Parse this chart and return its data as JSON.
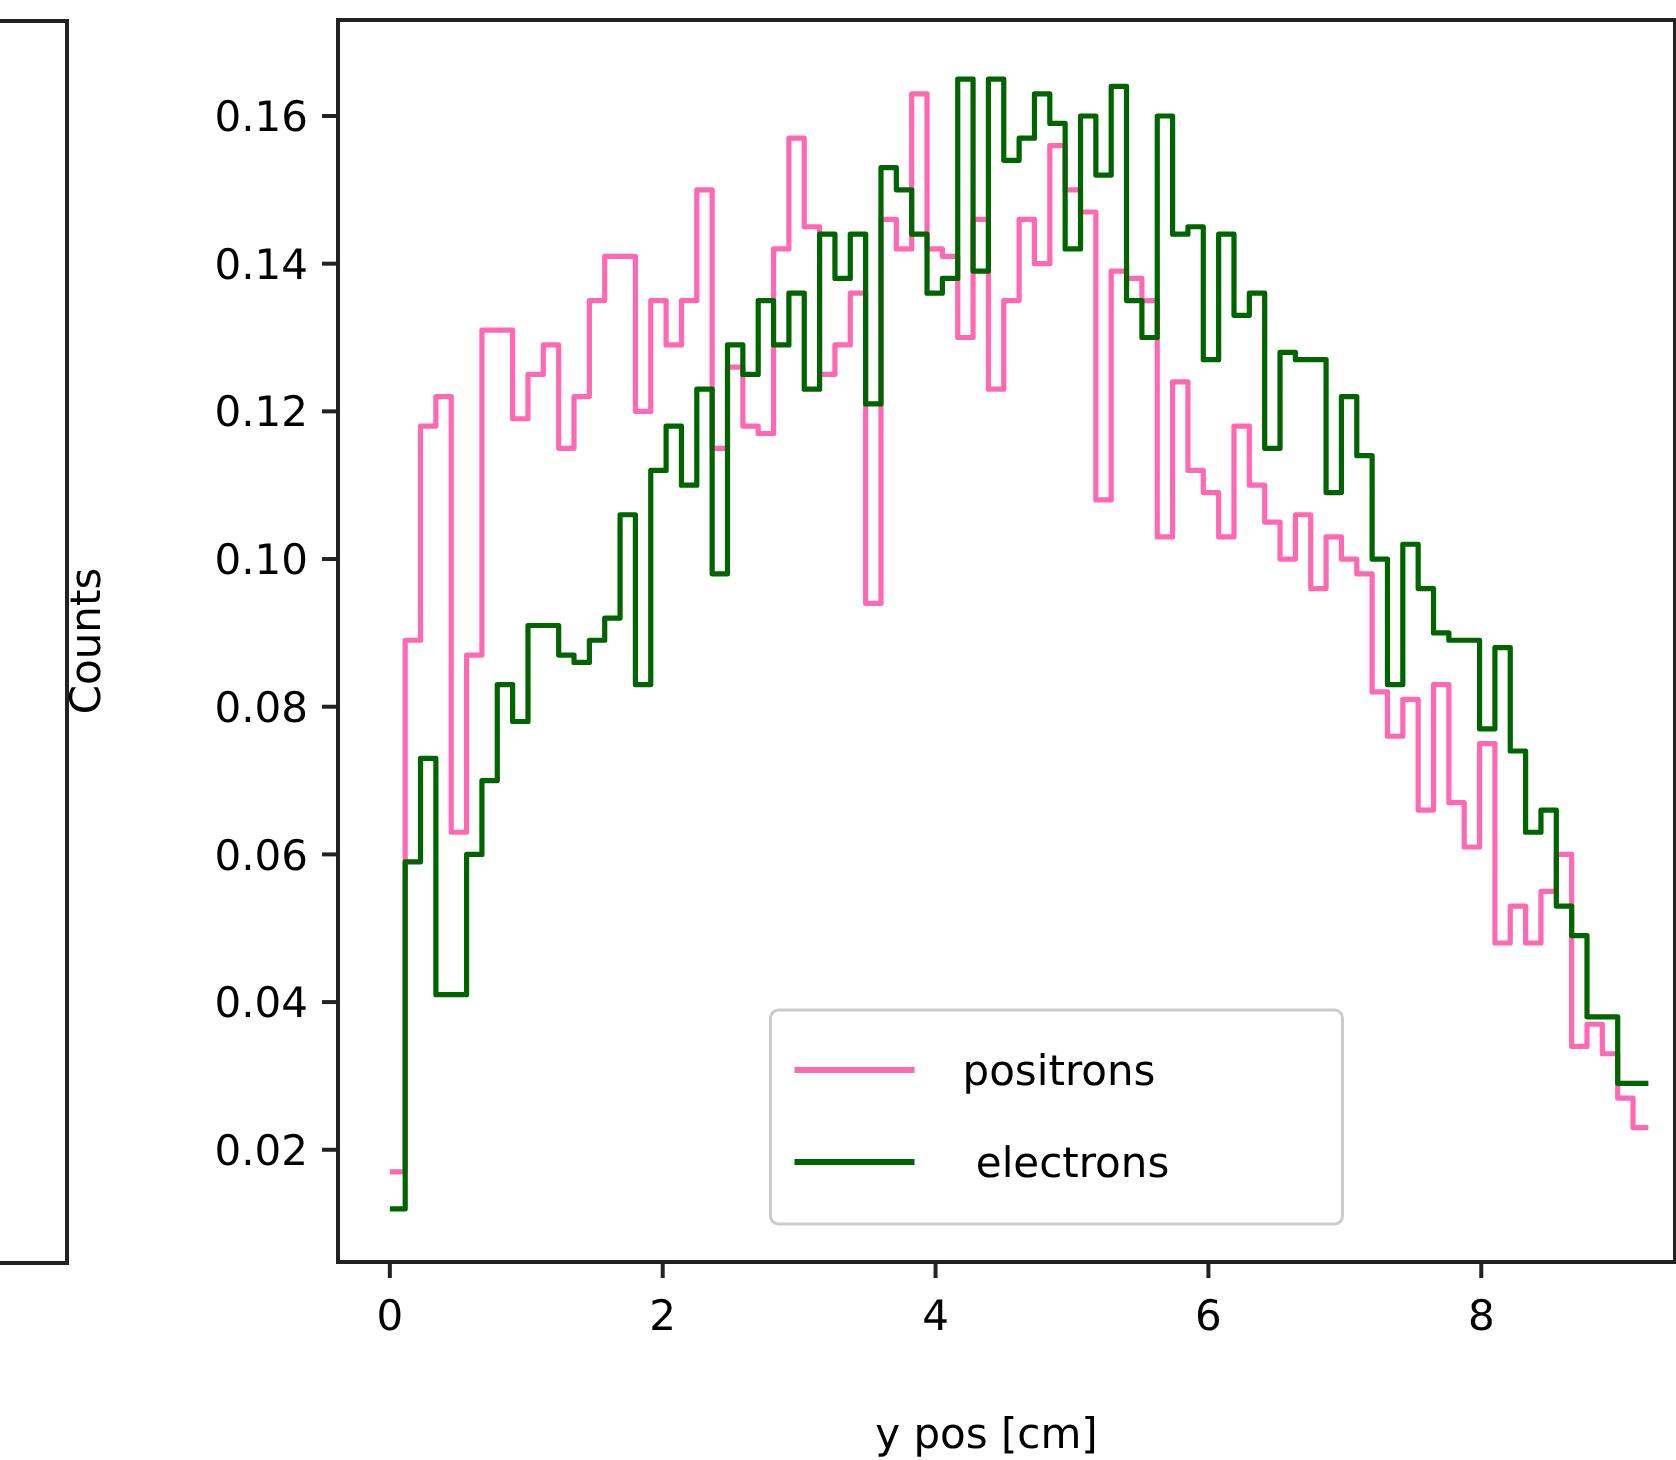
{
  "chart_data": {
    "type": "histogram",
    "xlabel": "y pos [cm]",
    "ylabel": "Counts",
    "bins": [
      0,
      0.1125,
      0.225,
      0.3375,
      0.45,
      0.5625,
      0.675,
      0.7875,
      0.9,
      1.0125,
      1.125,
      1.2375,
      1.35,
      1.4625,
      1.575,
      1.6875,
      1.8,
      1.9125,
      2.025,
      2.1375,
      2.25,
      2.3625,
      2.475,
      2.5875,
      2.7,
      2.8125,
      2.925,
      3.0375,
      3.15,
      3.2625,
      3.375,
      3.4875,
      3.6,
      3.7125,
      3.825,
      3.9375,
      4.05,
      4.1625,
      4.275,
      4.3875,
      4.5,
      4.6125,
      4.725,
      4.8375,
      4.95,
      5.0625,
      5.175,
      5.2875,
      5.4,
      5.5125,
      5.625,
      5.7375,
      5.85,
      5.9625,
      6.075,
      6.1875,
      6.3,
      6.4125,
      6.525,
      6.6375,
      6.75,
      6.8625,
      6.975,
      7.0875,
      7.2,
      7.3125,
      7.425,
      7.5375,
      7.65,
      7.7625,
      7.875,
      7.9875,
      8.1,
      8.2125,
      8.325,
      8.4375,
      8.55,
      8.6625,
      8.775,
      8.8875,
      9,
      9.1125,
      9.225
    ],
    "series": [
      {
        "name": "positrons",
        "color": "#ff69b4",
        "values": [
          0.017,
          0.089,
          0.118,
          0.122,
          0.063,
          0.087,
          0.131,
          0.131,
          0.119,
          0.125,
          0.129,
          0.115,
          0.122,
          0.135,
          0.141,
          0.141,
          0.12,
          0.135,
          0.129,
          0.135,
          0.15,
          0.115,
          0.126,
          0.118,
          0.117,
          0.142,
          0.157,
          0.145,
          0.125,
          0.129,
          0.136,
          0.094,
          0.146,
          0.142,
          0.163,
          0.142,
          0.141,
          0.13,
          0.146,
          0.123,
          0.135,
          0.146,
          0.14,
          0.156,
          0.15,
          0.147,
          0.108,
          0.139,
          0.138,
          0.135,
          0.103,
          0.124,
          0.112,
          0.109,
          0.103,
          0.118,
          0.11,
          0.105,
          0.1,
          0.106,
          0.096,
          0.103,
          0.1,
          0.098,
          0.082,
          0.076,
          0.081,
          0.066,
          0.083,
          0.067,
          0.061,
          0.075,
          0.048,
          0.053,
          0.048,
          0.055,
          0.06,
          0.034,
          0.037,
          0.033,
          0.027,
          0.023
        ]
      },
      {
        "name": " electrons",
        "color": "#006400",
        "values": [
          0.012,
          0.059,
          0.073,
          0.041,
          0.041,
          0.06,
          0.07,
          0.083,
          0.078,
          0.091,
          0.091,
          0.087,
          0.086,
          0.089,
          0.092,
          0.106,
          0.083,
          0.112,
          0.118,
          0.11,
          0.123,
          0.098,
          0.129,
          0.125,
          0.135,
          0.129,
          0.136,
          0.123,
          0.144,
          0.138,
          0.144,
          0.121,
          0.153,
          0.15,
          0.144,
          0.136,
          0.138,
          0.165,
          0.139,
          0.165,
          0.154,
          0.157,
          0.163,
          0.159,
          0.142,
          0.16,
          0.152,
          0.164,
          0.135,
          0.13,
          0.16,
          0.144,
          0.145,
          0.127,
          0.144,
          0.133,
          0.136,
          0.115,
          0.128,
          0.127,
          0.127,
          0.109,
          0.122,
          0.114,
          0.1,
          0.083,
          0.102,
          0.096,
          0.09,
          0.089,
          0.089,
          0.077,
          0.088,
          0.074,
          0.063,
          0.066,
          0.053,
          0.049,
          0.038,
          0.038,
          0.029,
          0.029
        ]
      }
    ],
    "xlim": [
      -0.38,
      9.42
    ],
    "ylim": [
      0.0048,
      0.173
    ],
    "xticks": [
      0,
      2,
      4,
      6,
      8
    ],
    "yticks": [
      {
        "value": 0.02,
        "label": "0.02"
      },
      {
        "value": 0.04,
        "label": "0.04"
      },
      {
        "value": 0.06,
        "label": "0.06"
      },
      {
        "value": 0.08,
        "label": "0.08"
      },
      {
        "value": 0.1,
        "label": "0.10"
      },
      {
        "value": 0.12,
        "label": "0.12"
      },
      {
        "value": 0.14,
        "label": "0.14"
      },
      {
        "value": 0.16,
        "label": "0.16"
      }
    ],
    "legend": "bottom"
  }
}
